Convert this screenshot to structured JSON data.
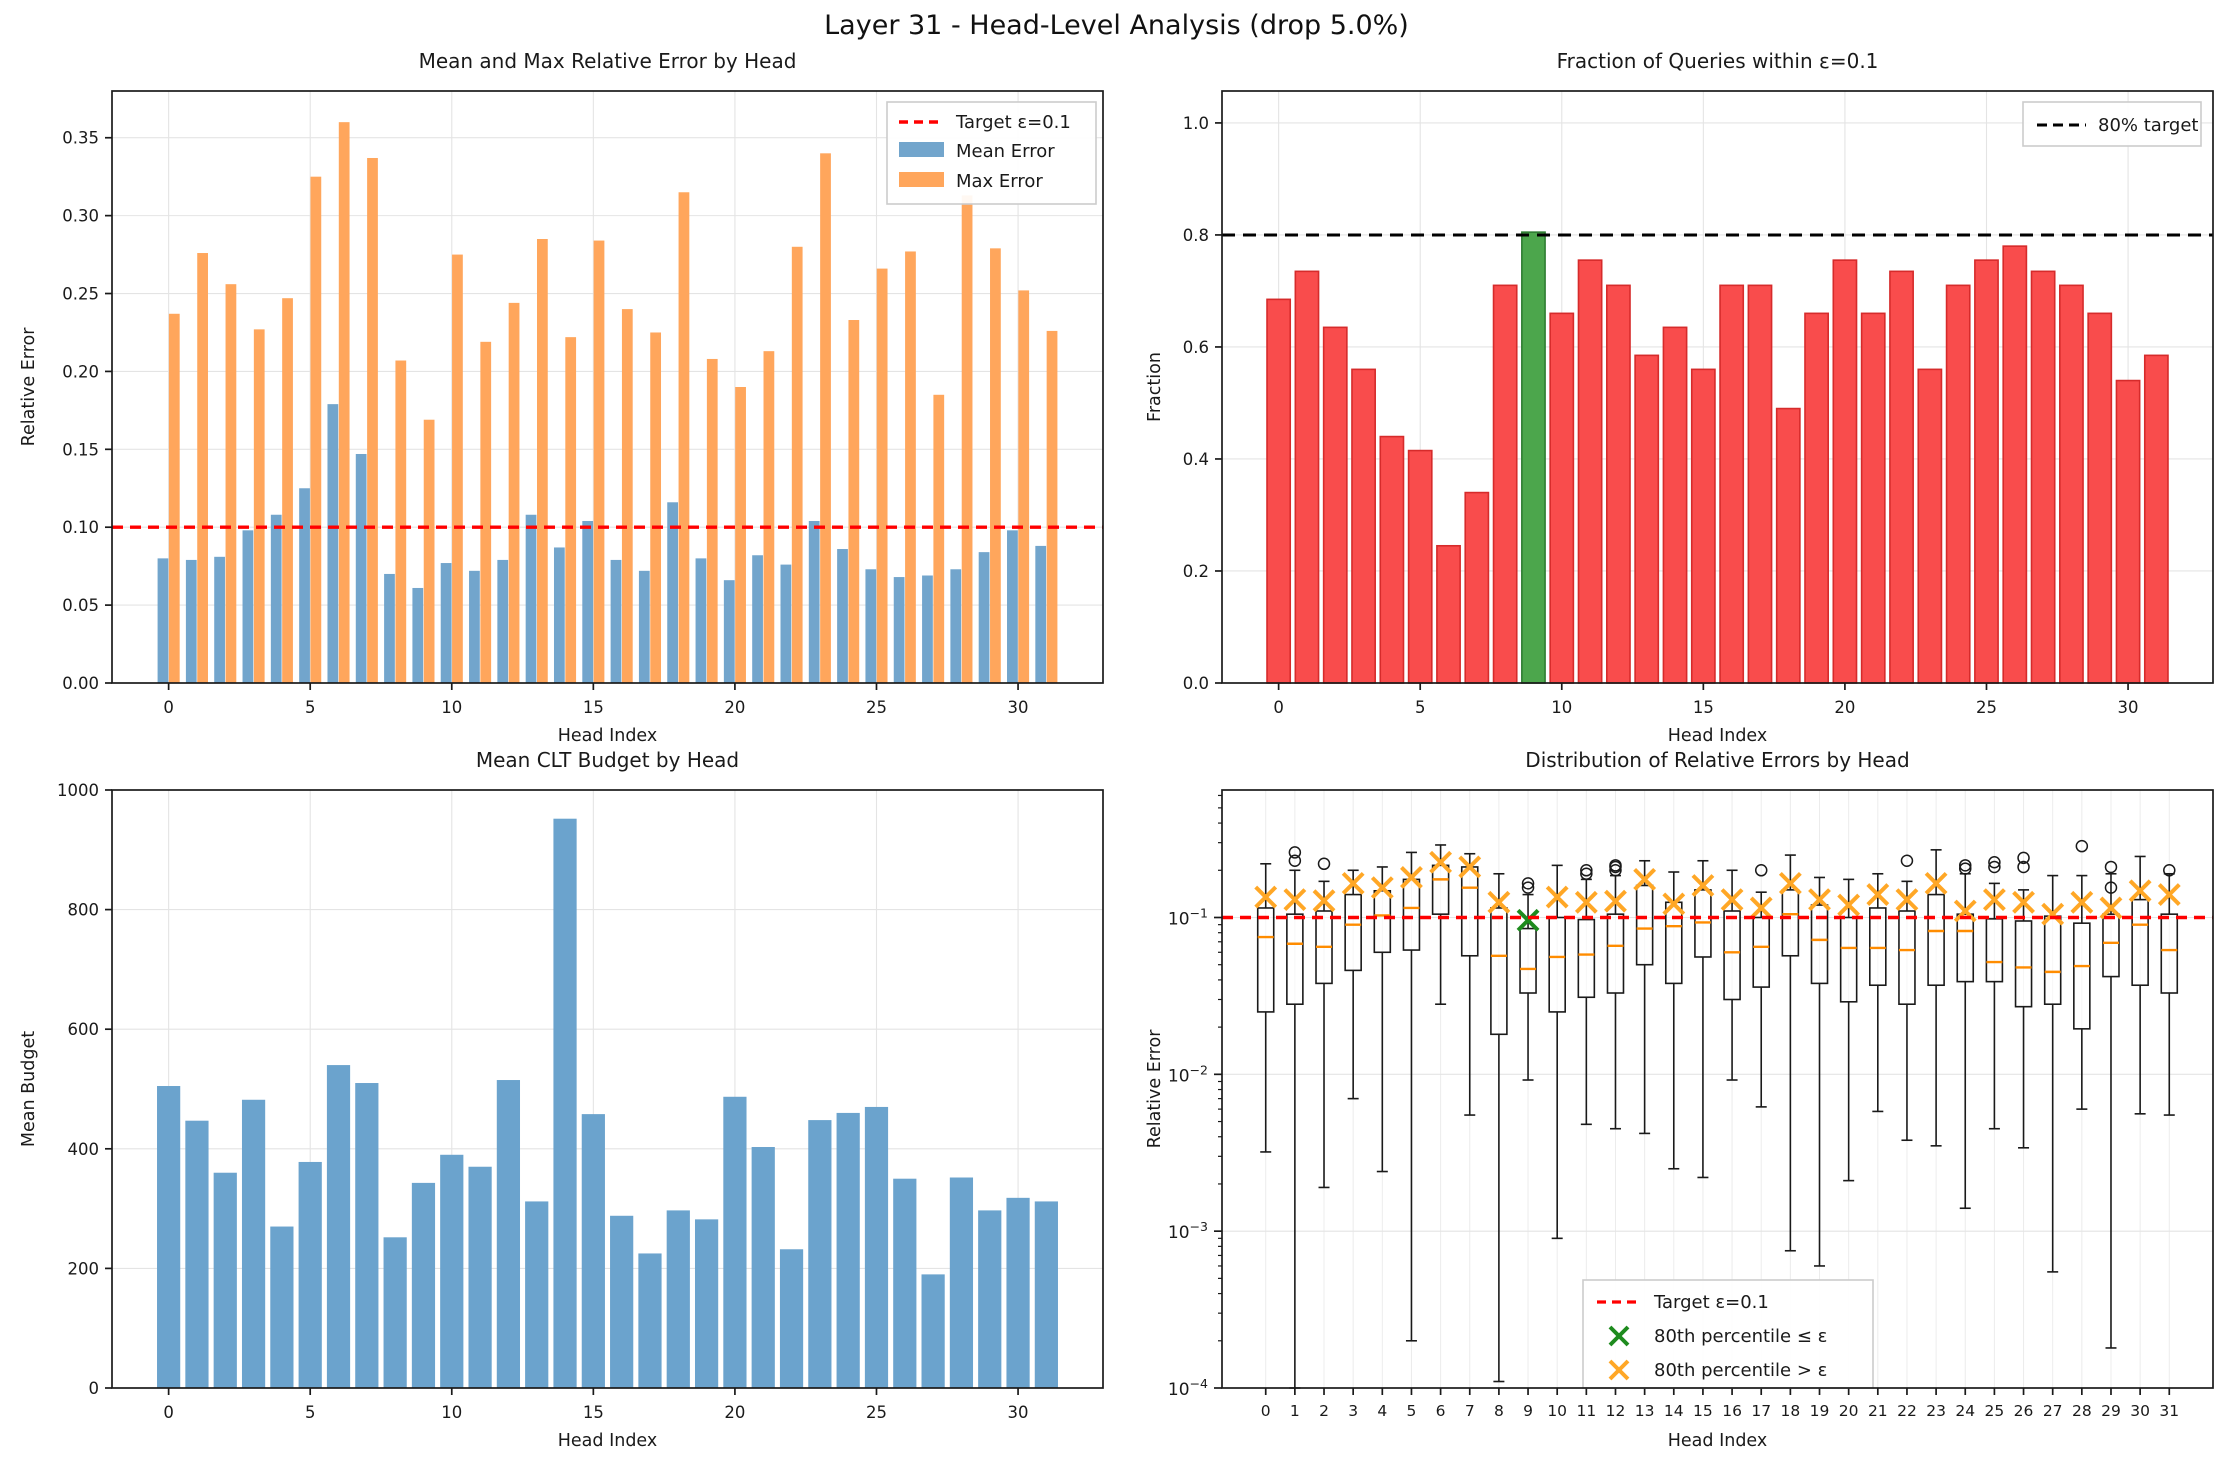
{
  "figure": {
    "title": "Layer 31 - Head-Level Analysis (drop 5.0%)",
    "background": "#ffffff"
  },
  "colors": {
    "mean_bar": "#72a5cc",
    "max_bar": "#ffa65c",
    "fraction_bar": "#f94c4c",
    "fraction_bar_edge": "#d62b2b",
    "highlight_bar": "#4ca64c",
    "highlight_bar_edge": "#2e7d32",
    "budget_bar": "#6ba3cd",
    "target_red": "#ff0000",
    "target_black": "#000000",
    "median_orange": "#ff8c00",
    "marker_orange": "#ffa726",
    "marker_green": "#1e8b1e",
    "grid": "#e4e4e4",
    "axis": "#1a1a1a"
  },
  "chart_data": [
    {
      "id": "mean-max-error",
      "type": "bar",
      "title": "Mean and Max Relative Error by Head",
      "xlabel": "Head Index",
      "ylabel": "Relative Error",
      "categories": [
        0,
        1,
        2,
        3,
        4,
        5,
        6,
        7,
        8,
        9,
        10,
        11,
        12,
        13,
        14,
        15,
        16,
        17,
        18,
        19,
        20,
        21,
        22,
        23,
        24,
        25,
        26,
        27,
        28,
        29,
        30,
        31
      ],
      "series": [
        {
          "name": "Mean Error",
          "values": [
            0.08,
            0.079,
            0.081,
            0.098,
            0.108,
            0.125,
            0.179,
            0.147,
            0.07,
            0.061,
            0.077,
            0.072,
            0.079,
            0.108,
            0.087,
            0.104,
            0.079,
            0.072,
            0.116,
            0.08,
            0.066,
            0.082,
            0.076,
            0.104,
            0.086,
            0.073,
            0.068,
            0.069,
            0.073,
            0.084,
            0.098,
            0.088
          ]
        },
        {
          "name": "Max Error",
          "values": [
            0.237,
            0.276,
            0.256,
            0.227,
            0.247,
            0.325,
            0.36,
            0.337,
            0.207,
            0.169,
            0.275,
            0.219,
            0.244,
            0.285,
            0.222,
            0.284,
            0.24,
            0.225,
            0.315,
            0.208,
            0.19,
            0.213,
            0.28,
            0.34,
            0.233,
            0.266,
            0.277,
            0.185,
            0.313,
            0.279,
            0.252,
            0.226
          ]
        }
      ],
      "target_line": {
        "label": "Target ε=0.1",
        "value": 0.1
      },
      "ylim": [
        0,
        0.38
      ],
      "yticks": [
        "0.00",
        "0.05",
        "0.10",
        "0.15",
        "0.20",
        "0.25",
        "0.30",
        "0.35"
      ],
      "xticks": [
        0,
        5,
        10,
        15,
        20,
        25,
        30
      ],
      "legend_position": "upper-right",
      "grid": true
    },
    {
      "id": "fraction-within-eps",
      "type": "bar",
      "title": "Fraction of Queries within ε=0.1",
      "xlabel": "Head Index",
      "ylabel": "Fraction",
      "categories": [
        0,
        1,
        2,
        3,
        4,
        5,
        6,
        7,
        8,
        9,
        10,
        11,
        12,
        13,
        14,
        15,
        16,
        17,
        18,
        19,
        20,
        21,
        22,
        23,
        24,
        25,
        26,
        27,
        28,
        29,
        30,
        31
      ],
      "values": [
        0.685,
        0.735,
        0.635,
        0.56,
        0.44,
        0.415,
        0.245,
        0.34,
        0.71,
        0.805,
        0.66,
        0.755,
        0.71,
        0.585,
        0.635,
        0.56,
        0.71,
        0.71,
        0.49,
        0.66,
        0.755,
        0.66,
        0.735,
        0.56,
        0.71,
        0.755,
        0.78,
        0.735,
        0.71,
        0.66,
        0.54,
        0.585
      ],
      "highlight_index": 9,
      "target_line": {
        "label": "80% target",
        "value": 0.8
      },
      "ylim": [
        0,
        1.057
      ],
      "yticks": [
        "0.0",
        "0.2",
        "0.4",
        "0.6",
        "0.8",
        "1.0"
      ],
      "xticks": [
        0,
        5,
        10,
        15,
        20,
        25,
        30
      ],
      "legend_position": "upper-right",
      "grid": true
    },
    {
      "id": "mean-clt-budget",
      "type": "bar",
      "title": "Mean CLT Budget by Head",
      "xlabel": "Head Index",
      "ylabel": "Mean Budget",
      "categories": [
        0,
        1,
        2,
        3,
        4,
        5,
        6,
        7,
        8,
        9,
        10,
        11,
        12,
        13,
        14,
        15,
        16,
        17,
        18,
        19,
        20,
        21,
        22,
        23,
        24,
        25,
        26,
        27,
        28,
        29,
        30,
        31
      ],
      "values": [
        505,
        447,
        360,
        482,
        270,
        378,
        540,
        510,
        252,
        343,
        390,
        370,
        515,
        312,
        952,
        458,
        288,
        225,
        297,
        282,
        487,
        403,
        232,
        448,
        460,
        470,
        350,
        190,
        352,
        297,
        318,
        312
      ],
      "ylim": [
        0,
        1000
      ],
      "yticks": [
        "0",
        "200",
        "400",
        "600",
        "800",
        "1000"
      ],
      "xticks": [
        0,
        5,
        10,
        15,
        20,
        25,
        30
      ],
      "grid": true
    },
    {
      "id": "error-distribution",
      "type": "boxplot",
      "title": "Distribution of Relative Errors by Head",
      "xlabel": "Head Index",
      "ylabel": "Relative Error",
      "yscale": "log",
      "ylim": [
        0.0001,
        0.65
      ],
      "ytick_exponents": [
        -4,
        -3,
        -2,
        -1
      ],
      "categories": [
        0,
        1,
        2,
        3,
        4,
        5,
        6,
        7,
        8,
        9,
        10,
        11,
        12,
        13,
        14,
        15,
        16,
        17,
        18,
        19,
        20,
        21,
        22,
        23,
        24,
        25,
        26,
        27,
        28,
        29,
        30,
        31
      ],
      "target_line": {
        "label": "Target ε=0.1",
        "value": 0.1
      },
      "legend": {
        "target": "Target ε=0.1",
        "pass": "80th percentile ≤ ε",
        "fail": "80th percentile > ε"
      },
      "boxes": [
        {
          "head": 0,
          "whislo": 0.0032,
          "q1": 0.025,
          "med": 0.075,
          "q3": 0.115,
          "whishi": 0.22,
          "p80": 0.135,
          "p80_within": false,
          "outliers": []
        },
        {
          "head": 1,
          "whislo": 0.0001,
          "q1": 0.028,
          "med": 0.068,
          "q3": 0.105,
          "whishi": 0.2,
          "p80": 0.13,
          "p80_within": false,
          "outliers": [
            0.23,
            0.26
          ]
        },
        {
          "head": 2,
          "whislo": 0.0019,
          "q1": 0.038,
          "med": 0.065,
          "q3": 0.11,
          "whishi": 0.17,
          "p80": 0.128,
          "p80_within": false,
          "outliers": [
            0.22
          ]
        },
        {
          "head": 3,
          "whislo": 0.007,
          "q1": 0.046,
          "med": 0.09,
          "q3": 0.14,
          "whishi": 0.2,
          "p80": 0.165,
          "p80_within": false,
          "outliers": []
        },
        {
          "head": 4,
          "whislo": 0.0024,
          "q1": 0.06,
          "med": 0.103,
          "q3": 0.148,
          "whishi": 0.21,
          "p80": 0.155,
          "p80_within": false,
          "outliers": []
        },
        {
          "head": 5,
          "whislo": 0.0002,
          "q1": 0.062,
          "med": 0.115,
          "q3": 0.175,
          "whishi": 0.26,
          "p80": 0.18,
          "p80_within": false,
          "outliers": []
        },
        {
          "head": 6,
          "whislo": 0.028,
          "q1": 0.105,
          "med": 0.175,
          "q3": 0.215,
          "whishi": 0.29,
          "p80": 0.225,
          "p80_within": false,
          "outliers": []
        },
        {
          "head": 7,
          "whislo": 0.0055,
          "q1": 0.057,
          "med": 0.155,
          "q3": 0.21,
          "whishi": 0.255,
          "p80": 0.21,
          "p80_within": false,
          "outliers": []
        },
        {
          "head": 8,
          "whislo": 0.00011,
          "q1": 0.018,
          "med": 0.057,
          "q3": 0.115,
          "whishi": 0.19,
          "p80": 0.125,
          "p80_within": false,
          "outliers": []
        },
        {
          "head": 9,
          "whislo": 0.0092,
          "q1": 0.033,
          "med": 0.047,
          "q3": 0.085,
          "whishi": 0.14,
          "p80": 0.096,
          "p80_within": true,
          "outliers": [
            0.155,
            0.165
          ]
        },
        {
          "head": 10,
          "whislo": 0.0009,
          "q1": 0.025,
          "med": 0.056,
          "q3": 0.1,
          "whishi": 0.215,
          "p80": 0.135,
          "p80_within": false,
          "outliers": []
        },
        {
          "head": 11,
          "whislo": 0.0048,
          "q1": 0.031,
          "med": 0.058,
          "q3": 0.097,
          "whishi": 0.175,
          "p80": 0.125,
          "p80_within": false,
          "outliers": [
            0.19,
            0.2
          ]
        },
        {
          "head": 12,
          "whislo": 0.0045,
          "q1": 0.033,
          "med": 0.066,
          "q3": 0.105,
          "whishi": 0.185,
          "p80": 0.127,
          "p80_within": false,
          "outliers": [
            0.2,
            0.21,
            0.215
          ]
        },
        {
          "head": 13,
          "whislo": 0.0042,
          "q1": 0.05,
          "med": 0.085,
          "q3": 0.16,
          "whishi": 0.23,
          "p80": 0.175,
          "p80_within": false,
          "outliers": []
        },
        {
          "head": 14,
          "whislo": 0.0025,
          "q1": 0.038,
          "med": 0.088,
          "q3": 0.125,
          "whishi": 0.195,
          "p80": 0.122,
          "p80_within": false,
          "outliers": []
        },
        {
          "head": 15,
          "whislo": 0.0022,
          "q1": 0.056,
          "med": 0.093,
          "q3": 0.15,
          "whishi": 0.23,
          "p80": 0.16,
          "p80_within": false,
          "outliers": []
        },
        {
          "head": 16,
          "whislo": 0.0092,
          "q1": 0.03,
          "med": 0.06,
          "q3": 0.11,
          "whishi": 0.2,
          "p80": 0.13,
          "p80_within": false,
          "outliers": []
        },
        {
          "head": 17,
          "whislo": 0.0062,
          "q1": 0.036,
          "med": 0.065,
          "q3": 0.1,
          "whishi": 0.145,
          "p80": 0.115,
          "p80_within": false,
          "outliers": [
            0.2
          ]
        },
        {
          "head": 18,
          "whislo": 0.00075,
          "q1": 0.057,
          "med": 0.105,
          "q3": 0.15,
          "whishi": 0.25,
          "p80": 0.165,
          "p80_within": false,
          "outliers": []
        },
        {
          "head": 19,
          "whislo": 0.0006,
          "q1": 0.038,
          "med": 0.072,
          "q3": 0.12,
          "whishi": 0.18,
          "p80": 0.13,
          "p80_within": false,
          "outliers": []
        },
        {
          "head": 20,
          "whislo": 0.0021,
          "q1": 0.029,
          "med": 0.064,
          "q3": 0.1,
          "whishi": 0.175,
          "p80": 0.12,
          "p80_within": false,
          "outliers": []
        },
        {
          "head": 21,
          "whislo": 0.0058,
          "q1": 0.037,
          "med": 0.064,
          "q3": 0.115,
          "whishi": 0.19,
          "p80": 0.14,
          "p80_within": false,
          "outliers": []
        },
        {
          "head": 22,
          "whislo": 0.0038,
          "q1": 0.028,
          "med": 0.062,
          "q3": 0.11,
          "whishi": 0.17,
          "p80": 0.13,
          "p80_within": false,
          "outliers": [
            0.23
          ]
        },
        {
          "head": 23,
          "whislo": 0.0035,
          "q1": 0.037,
          "med": 0.082,
          "q3": 0.14,
          "whishi": 0.27,
          "p80": 0.165,
          "p80_within": false,
          "outliers": []
        },
        {
          "head": 24,
          "whislo": 0.0014,
          "q1": 0.039,
          "med": 0.082,
          "q3": 0.105,
          "whishi": 0.19,
          "p80": 0.11,
          "p80_within": false,
          "outliers": [
            0.205,
            0.215
          ]
        },
        {
          "head": 25,
          "whislo": 0.0045,
          "q1": 0.039,
          "med": 0.052,
          "q3": 0.098,
          "whishi": 0.165,
          "p80": 0.13,
          "p80_within": false,
          "outliers": [
            0.21,
            0.225
          ]
        },
        {
          "head": 26,
          "whislo": 0.0034,
          "q1": 0.027,
          "med": 0.048,
          "q3": 0.095,
          "whishi": 0.15,
          "p80": 0.125,
          "p80_within": false,
          "outliers": [
            0.21,
            0.24
          ]
        },
        {
          "head": 27,
          "whislo": 0.00055,
          "q1": 0.028,
          "med": 0.045,
          "q3": 0.102,
          "whishi": 0.185,
          "p80": 0.105,
          "p80_within": false,
          "outliers": []
        },
        {
          "head": 28,
          "whislo": 0.006,
          "q1": 0.0195,
          "med": 0.049,
          "q3": 0.092,
          "whishi": 0.185,
          "p80": 0.125,
          "p80_within": false,
          "outliers": [
            0.285
          ]
        },
        {
          "head": 29,
          "whislo": 0.00018,
          "q1": 0.042,
          "med": 0.069,
          "q3": 0.105,
          "whishi": 0.19,
          "p80": 0.115,
          "p80_within": false,
          "outliers": [
            0.155,
            0.21
          ]
        },
        {
          "head": 30,
          "whislo": 0.0056,
          "q1": 0.037,
          "med": 0.09,
          "q3": 0.13,
          "whishi": 0.245,
          "p80": 0.148,
          "p80_within": false,
          "outliers": []
        },
        {
          "head": 31,
          "whislo": 0.0055,
          "q1": 0.033,
          "med": 0.062,
          "q3": 0.105,
          "whishi": 0.19,
          "p80": 0.14,
          "p80_within": false,
          "outliers": [
            0.2
          ]
        }
      ],
      "grid": true
    }
  ]
}
